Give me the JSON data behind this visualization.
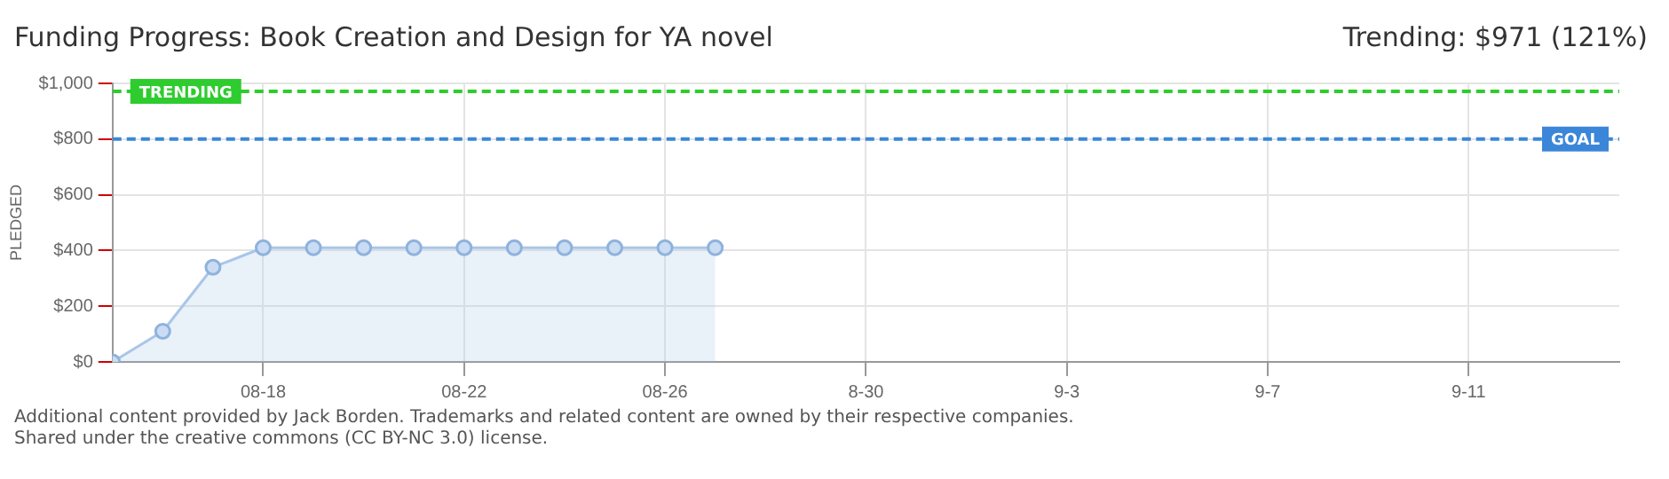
{
  "chart_data": {
    "type": "area",
    "title": "Funding Progress: Book Creation and Design for YA novel",
    "subtitle": "Trending: $971 (121%)",
    "ylabel": "PLEDGED",
    "x": [
      "--08-15",
      "--08-16",
      "--08-17",
      "--08-18",
      "--08-19",
      "--08-20",
      "--08-21",
      "--08-22",
      "--08-23",
      "--08-24",
      "--08-25",
      "--08-26",
      "--08-27"
    ],
    "series": [
      {
        "color": "#a9c6e8",
        "values": [
          0,
          110,
          340,
          410,
          410,
          410,
          410,
          410,
          410,
          410,
          410,
          410,
          410
        ]
      }
    ],
    "xlim": [
      "--08-15",
      "--09-14"
    ],
    "xticks": [
      {
        "value": "--08-18",
        "label": "08-18"
      },
      {
        "value": "--08-22",
        "label": "08-22"
      },
      {
        "value": "--08-26",
        "label": "08-26"
      },
      {
        "value": "--08-30",
        "label": "8-30"
      },
      {
        "value": "--09-03",
        "label": "9-3"
      },
      {
        "value": "--09-07",
        "label": "9-7"
      },
      {
        "value": "--09-11",
        "label": "9-11"
      }
    ],
    "ylim": [
      0,
      1000
    ],
    "yticks": [
      {
        "value": 0,
        "label": "$0"
      },
      {
        "value": 200,
        "label": "$200"
      },
      {
        "value": 400,
        "label": "$400"
      },
      {
        "value": 600,
        "label": "$600"
      },
      {
        "value": 800,
        "label": "$800"
      },
      {
        "value": 1000,
        "label": "$1,000"
      }
    ],
    "ref_lines": [
      {
        "axis": "y",
        "value": 971,
        "label": "TRENDING",
        "color": "#2ecc2e",
        "line_style": "dashed"
      },
      {
        "axis": "y",
        "value": 800,
        "label": "GOAL",
        "color": "#3b86d8",
        "line_style": "dashed"
      }
    ],
    "grid": true,
    "legend": false,
    "marker": "circle",
    "line_style": "solid",
    "annotations": [
      "Additional content provided by Jack Borden. Trademarks and related content are owned by their respective companies.",
      "Shared under the creative commons (CC BY-NC 3.0) license."
    ]
  }
}
